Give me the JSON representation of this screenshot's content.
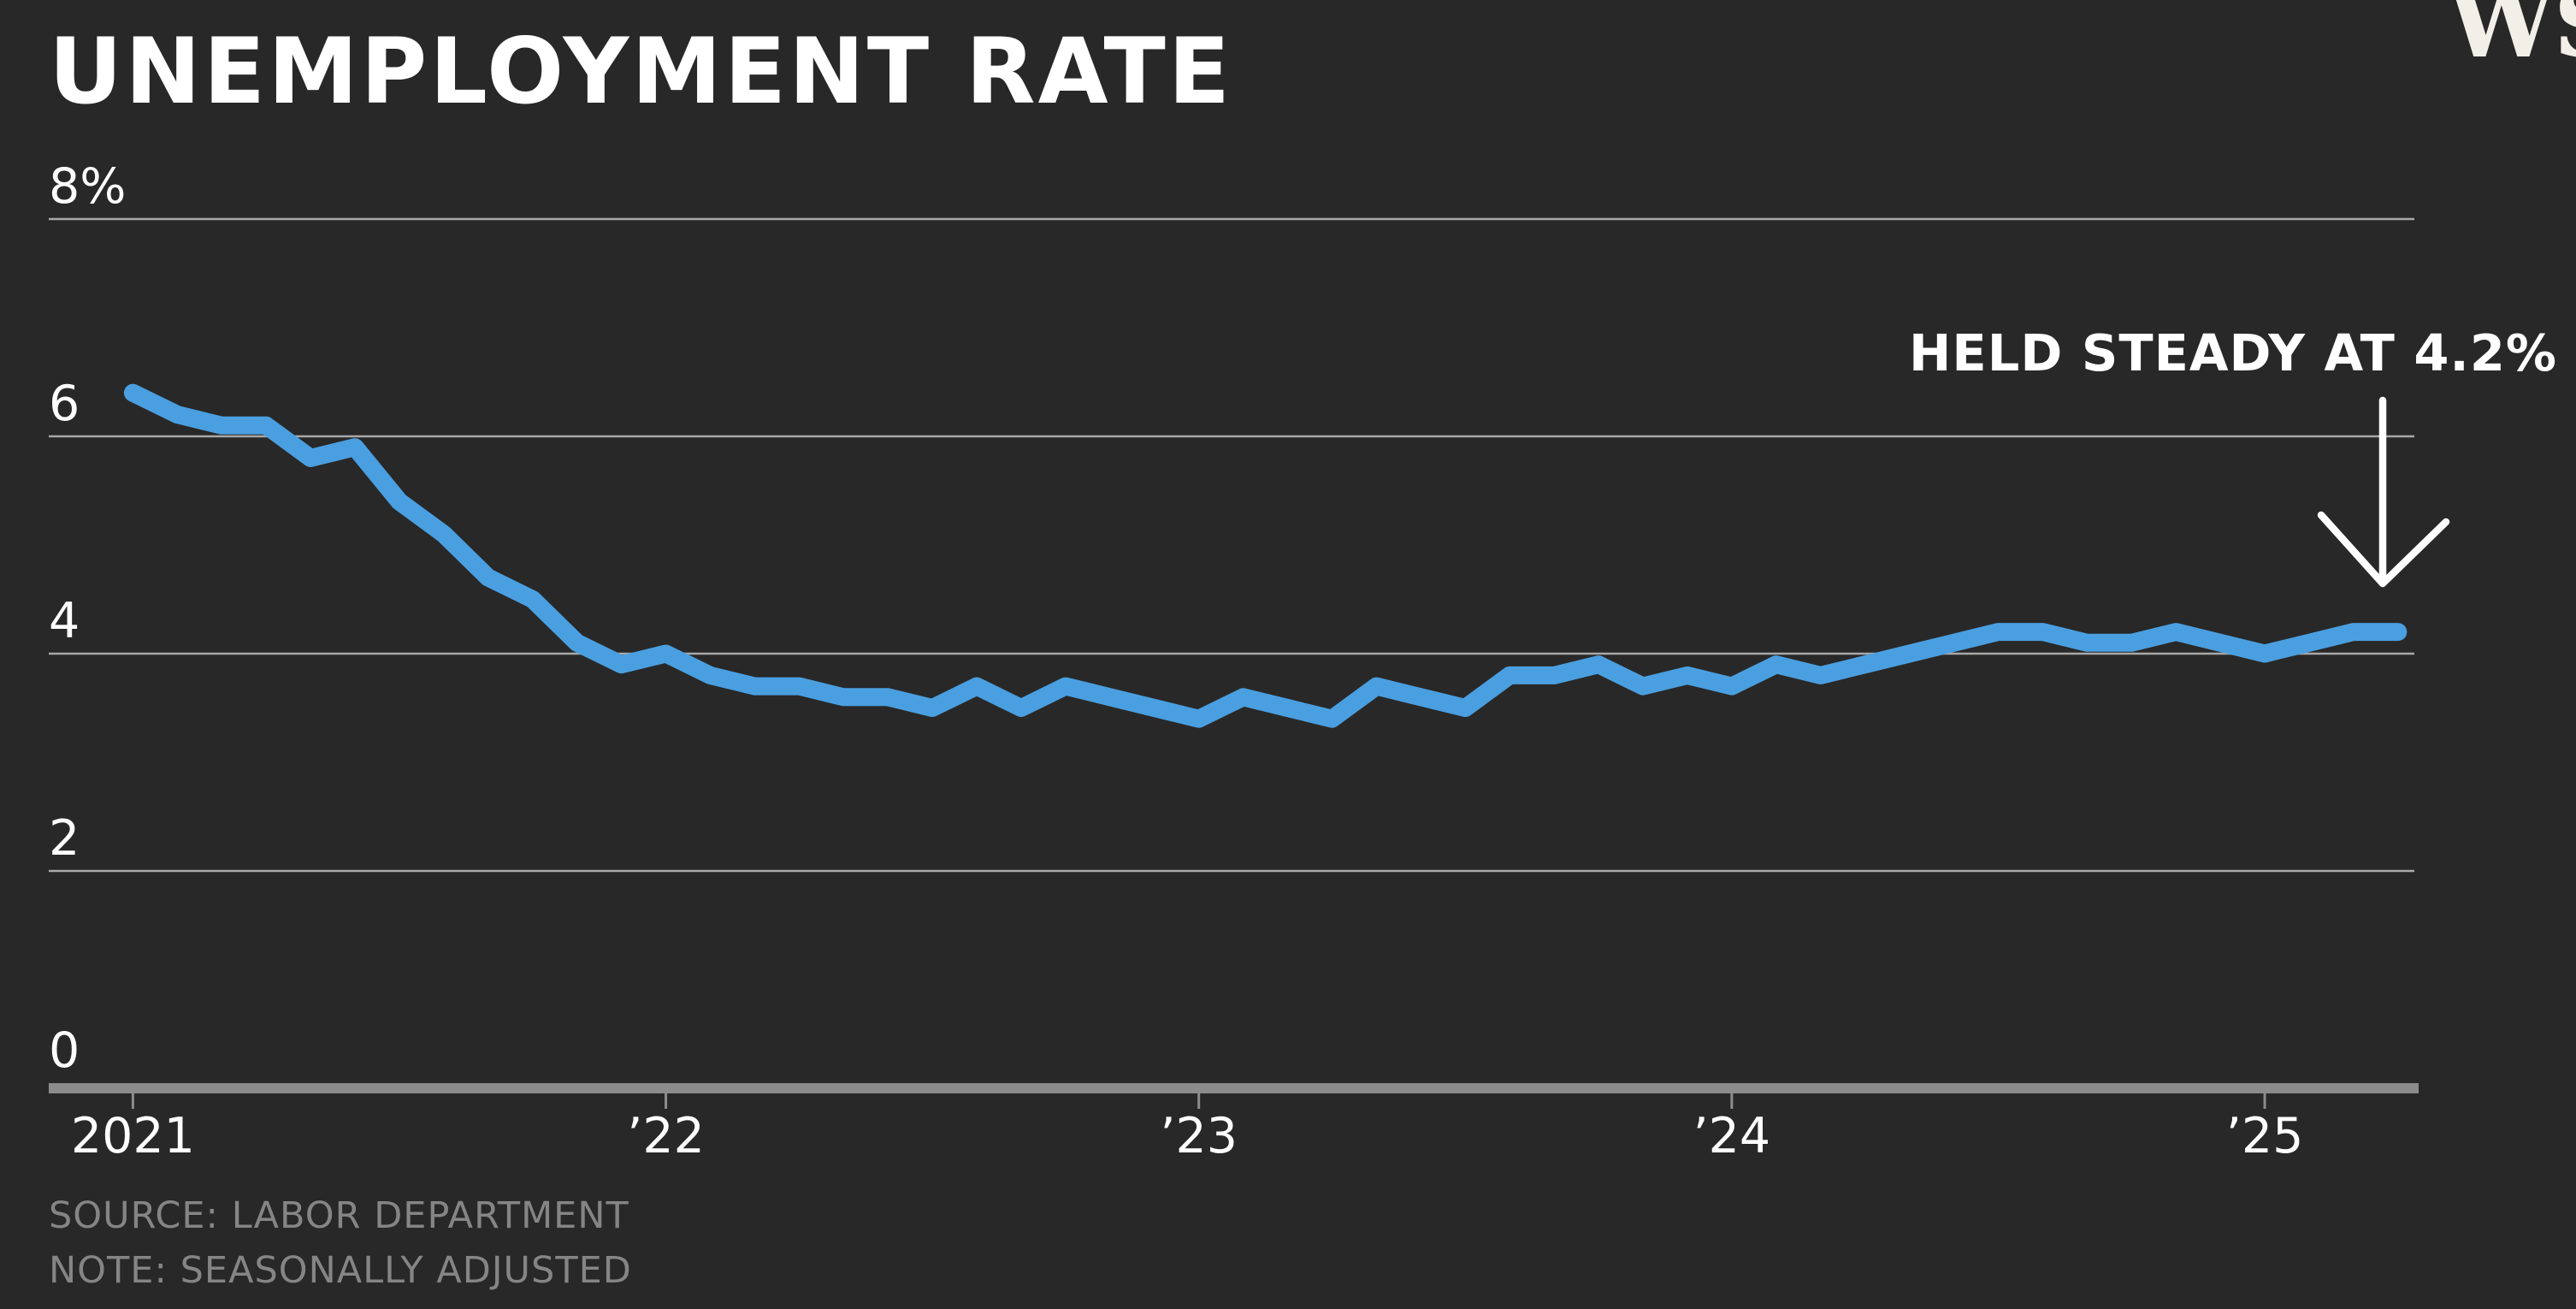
{
  "page": {
    "background": "#282828",
    "accent_blue": "#4a9fe0",
    "gridline_color": "#a8a8a8",
    "axis_bar_color": "#8c8c8c",
    "text_muted_color": "#858585"
  },
  "header": {
    "title": "UNEMPLOYMENT RATE",
    "logo": "WSJ"
  },
  "annotation": {
    "text": "HELD STEADY AT 4.2%"
  },
  "footer": {
    "source": "SOURCE: LABOR DEPARTMENT",
    "note": "NOTE: SEASONALLY ADJUSTED"
  },
  "chart_data": {
    "type": "line",
    "title": "UNEMPLOYMENT RATE",
    "ylabel": "",
    "xlabel": "",
    "ylim": [
      0,
      8
    ],
    "grid": "horizontal",
    "legend_position": "none",
    "line_color": "#4a9fe0",
    "x_start": "Jan 2021",
    "x_end": "Apr 2025",
    "frequency": "monthly",
    "series": [
      {
        "name": "Unemployment rate, seasonally adjusted (%)",
        "values": [
          6.4,
          6.2,
          6.1,
          6.1,
          5.8,
          5.9,
          5.4,
          5.1,
          4.7,
          4.5,
          4.1,
          3.9,
          4.0,
          3.8,
          3.7,
          3.7,
          3.6,
          3.6,
          3.5,
          3.7,
          3.5,
          3.7,
          3.6,
          3.5,
          3.4,
          3.6,
          3.5,
          3.4,
          3.7,
          3.6,
          3.5,
          3.8,
          3.8,
          3.9,
          3.7,
          3.8,
          3.7,
          3.9,
          3.8,
          3.9,
          4.0,
          4.1,
          4.2,
          4.2,
          4.1,
          4.1,
          4.2,
          4.1,
          4.0,
          4.1,
          4.2,
          4.2
        ]
      }
    ],
    "yticks": [
      {
        "value": 8,
        "label": "8%"
      },
      {
        "value": 6,
        "label": "6"
      },
      {
        "value": 4,
        "label": "4"
      },
      {
        "value": 2,
        "label": "2"
      },
      {
        "value": 0,
        "label": "0"
      }
    ],
    "xticks": [
      {
        "month_index": 0,
        "label": "2021"
      },
      {
        "month_index": 12,
        "label": "’22"
      },
      {
        "month_index": 24,
        "label": "’23"
      },
      {
        "month_index": 36,
        "label": "’24"
      },
      {
        "month_index": 48,
        "label": "’25"
      }
    ],
    "last_value_label": "4.2%"
  }
}
